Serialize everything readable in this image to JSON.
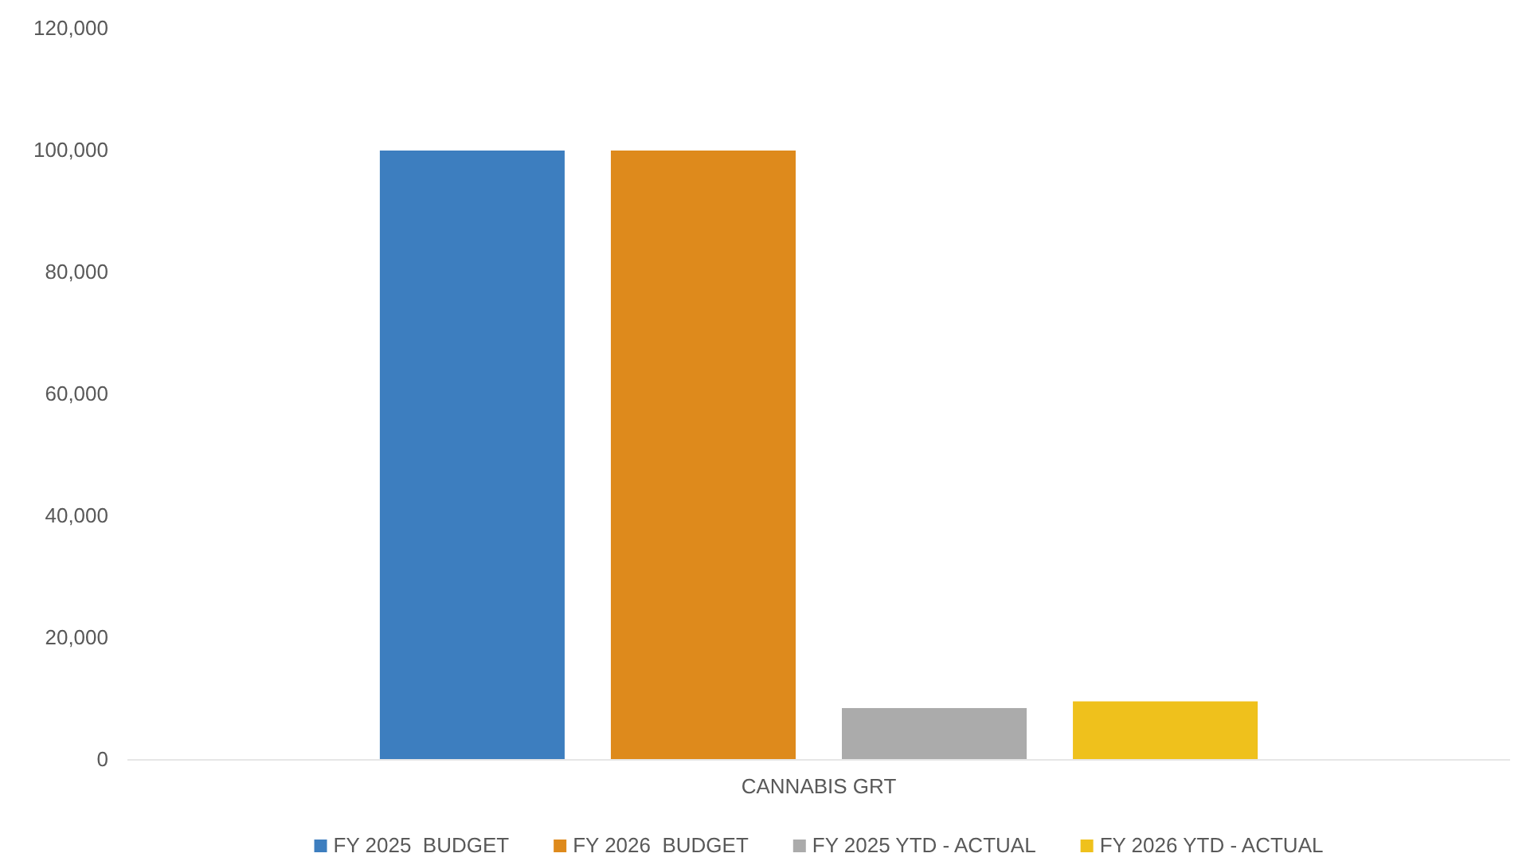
{
  "chart_data": {
    "type": "bar",
    "categories": [
      "CANNABIS GRT"
    ],
    "series": [
      {
        "name": "FY 2025  BUDGET",
        "color": "#3d7ebf",
        "values": [
          100000
        ]
      },
      {
        "name": "FY 2026  BUDGET",
        "color": "#de8a1c",
        "values": [
          100000
        ]
      },
      {
        "name": "FY 2025 YTD - ACTUAL",
        "color": "#ababab",
        "values": [
          8500
        ]
      },
      {
        "name": "FY 2026 YTD - ACTUAL",
        "color": "#efc11c",
        "values": [
          9600
        ]
      }
    ],
    "ylim": [
      0,
      120000
    ],
    "yticks": [
      {
        "value": 0,
        "label": "0"
      },
      {
        "value": 20000,
        "label": "20,000"
      },
      {
        "value": 40000,
        "label": "40,000"
      },
      {
        "value": 60000,
        "label": "60,000"
      },
      {
        "value": 80000,
        "label": "80,000"
      },
      {
        "value": 100000,
        "label": "100,000"
      },
      {
        "value": 120000,
        "label": "120,000"
      }
    ],
    "grid": false,
    "legend": "bottom"
  }
}
